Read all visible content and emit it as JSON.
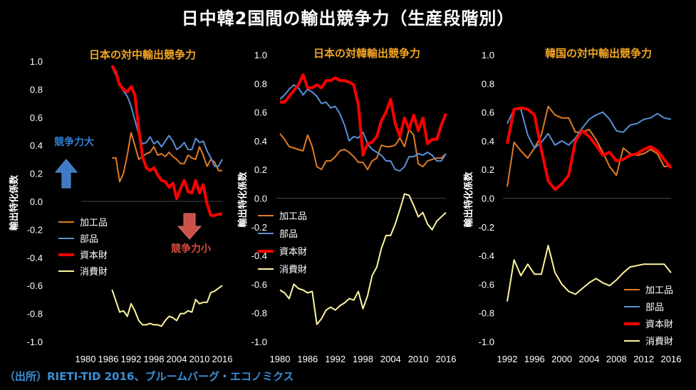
{
  "page": {
    "title": "日中韓2国間の輸出競争力（生産段階別）",
    "source": "（出所）RIETI-TID 2016、ブルームバーグ・エコノミクス"
  },
  "chart_data": [
    {
      "type": "line",
      "title": "日本の対中輸出競争力",
      "ylabel": "輸出特化係数",
      "ylim": [
        -1.0,
        1.0
      ],
      "yticks": [
        "1.0",
        "0.8",
        "0.6",
        "0.4",
        "0.2",
        "0.0",
        "-0.2",
        "-0.4",
        "-0.6",
        "-0.8",
        "-1.0"
      ],
      "xlim": [
        1980,
        2016
      ],
      "xticks": [
        "1980",
        "1986",
        "1992",
        "1998",
        "2004",
        "2010",
        "2016"
      ],
      "annotations": {
        "up": "競争力大",
        "down": "競争力小"
      },
      "legend_placement": "left-center",
      "series": [
        {
          "name": "加工品",
          "color": "#e07b25",
          "x": [
            1987,
            1988,
            1989,
            1990,
            1991,
            1992,
            1993,
            1994,
            1995,
            1996,
            1997,
            1998,
            1999,
            2000,
            2001,
            2002,
            2003,
            2004,
            2005,
            2006,
            2007,
            2008,
            2009,
            2010,
            2011,
            2012,
            2013,
            2014,
            2015,
            2016
          ],
          "y": [
            0.31,
            0.31,
            0.14,
            0.2,
            0.33,
            0.49,
            0.4,
            0.3,
            0.32,
            0.34,
            0.35,
            0.39,
            0.33,
            0.34,
            0.32,
            0.35,
            0.32,
            0.3,
            0.27,
            0.27,
            0.33,
            0.31,
            0.3,
            0.39,
            0.33,
            0.25,
            0.3,
            0.28,
            0.22,
            0.22
          ]
        },
        {
          "name": "部品",
          "color": "#5b8fd6",
          "x": [
            1987,
            1988,
            1989,
            1990,
            1991,
            1992,
            1993,
            1994,
            1995,
            1996,
            1997,
            1998,
            1999,
            2000,
            2001,
            2002,
            2003,
            2004,
            2005,
            2006,
            2007,
            2008,
            2009,
            2010,
            2011,
            2012,
            2013,
            2014,
            2015,
            2016
          ],
          "y": [
            0.96,
            0.9,
            0.83,
            0.79,
            0.75,
            0.68,
            0.58,
            0.48,
            0.41,
            0.42,
            0.46,
            0.41,
            0.43,
            0.39,
            0.43,
            0.47,
            0.43,
            0.37,
            0.39,
            0.42,
            0.37,
            0.37,
            0.45,
            0.42,
            0.43,
            0.36,
            0.31,
            0.25,
            0.25,
            0.3
          ]
        },
        {
          "name": "資本財",
          "color": "#ff0000",
          "x": [
            1987,
            1988,
            1989,
            1990,
            1991,
            1992,
            1993,
            1994,
            1995,
            1996,
            1997,
            1998,
            1999,
            2000,
            2001,
            2002,
            2003,
            2004,
            2005,
            2006,
            2007,
            2008,
            2009,
            2010,
            2011,
            2012,
            2013,
            2014,
            2015,
            2016
          ],
          "y": [
            0.97,
            0.92,
            0.83,
            0.8,
            0.78,
            0.82,
            0.76,
            0.52,
            0.32,
            0.24,
            0.22,
            0.24,
            0.19,
            0.15,
            0.14,
            0.1,
            0.13,
            0.02,
            0.09,
            0.15,
            0.07,
            0.06,
            0.15,
            0.06,
            0.12,
            -0.02,
            -0.1,
            -0.1,
            -0.09,
            -0.09
          ]
        },
        {
          "name": "消費財",
          "color": "#fff59d",
          "x": [
            1987,
            1988,
            1989,
            1990,
            1991,
            1992,
            1993,
            1994,
            1995,
            1996,
            1997,
            1998,
            1999,
            2000,
            2001,
            2002,
            2003,
            2004,
            2005,
            2006,
            2007,
            2008,
            2009,
            2010,
            2011,
            2012,
            2013,
            2014,
            2015,
            2016
          ],
          "y": [
            -0.63,
            -0.71,
            -0.79,
            -0.78,
            -0.82,
            -0.73,
            -0.78,
            -0.85,
            -0.88,
            -0.88,
            -0.87,
            -0.88,
            -0.88,
            -0.89,
            -0.85,
            -0.82,
            -0.83,
            -0.85,
            -0.8,
            -0.8,
            -0.78,
            -0.79,
            -0.7,
            -0.73,
            -0.72,
            -0.72,
            -0.65,
            -0.64,
            -0.62,
            -0.6
          ]
        }
      ]
    },
    {
      "type": "line",
      "title": "日本の対韓輸出競争力",
      "ylabel": "輸出特化係数",
      "ylim": [
        -1.0,
        1.0
      ],
      "yticks": [
        "1.0",
        "0.8",
        "0.6",
        "0.4",
        "0.2",
        "0.0",
        "-0.2",
        "-0.4",
        "-0.6",
        "-0.8",
        "-1.0"
      ],
      "xlim": [
        1980,
        2016
      ],
      "xticks": [
        "1980",
        "1986",
        "1992",
        "1998",
        "2004",
        "2010",
        "2016"
      ],
      "legend_placement": "left-center",
      "series": [
        {
          "name": "加工品",
          "color": "#e07b25",
          "x": [
            1980,
            1981,
            1982,
            1983,
            1984,
            1985,
            1986,
            1987,
            1988,
            1989,
            1990,
            1991,
            1992,
            1993,
            1994,
            1995,
            1996,
            1997,
            1998,
            1999,
            2000,
            2001,
            2002,
            2003,
            2004,
            2005,
            2006,
            2007,
            2008,
            2009,
            2010,
            2011,
            2012,
            2013,
            2014,
            2015,
            2016
          ],
          "y": [
            0.45,
            0.41,
            0.36,
            0.35,
            0.34,
            0.33,
            0.44,
            0.36,
            0.22,
            0.2,
            0.26,
            0.26,
            0.29,
            0.33,
            0.34,
            0.32,
            0.29,
            0.25,
            0.25,
            0.2,
            0.26,
            0.28,
            0.37,
            0.36,
            0.36,
            0.37,
            0.42,
            0.36,
            0.48,
            0.44,
            0.24,
            0.22,
            0.26,
            0.27,
            0.28,
            0.28,
            0.31
          ]
        },
        {
          "name": "部品",
          "color": "#5b8fd6",
          "x": [
            1980,
            1981,
            1982,
            1983,
            1984,
            1985,
            1986,
            1987,
            1988,
            1989,
            1990,
            1991,
            1992,
            1993,
            1994,
            1995,
            1996,
            1997,
            1998,
            1999,
            2000,
            2001,
            2002,
            2003,
            2004,
            2005,
            2006,
            2007,
            2008,
            2009,
            2010,
            2011,
            2012,
            2013,
            2014,
            2015,
            2016
          ],
          "y": [
            0.69,
            0.72,
            0.76,
            0.79,
            0.77,
            0.72,
            0.76,
            0.74,
            0.71,
            0.66,
            0.67,
            0.63,
            0.64,
            0.59,
            0.51,
            0.4,
            0.43,
            0.42,
            0.46,
            0.38,
            0.34,
            0.32,
            0.3,
            0.26,
            0.26,
            0.2,
            0.19,
            0.22,
            0.29,
            0.29,
            0.31,
            0.3,
            0.32,
            0.3,
            0.26,
            0.26,
            0.31
          ]
        },
        {
          "name": "資本財",
          "color": "#ff0000",
          "x": [
            1980,
            1981,
            1982,
            1983,
            1984,
            1985,
            1986,
            1987,
            1988,
            1989,
            1990,
            1991,
            1992,
            1993,
            1994,
            1995,
            1996,
            1997,
            1998,
            1999,
            2000,
            2001,
            2002,
            2003,
            2004,
            2005,
            2006,
            2007,
            2008,
            2009,
            2010,
            2011,
            2012,
            2013,
            2014,
            2015,
            2016
          ],
          "y": [
            0.67,
            0.67,
            0.71,
            0.75,
            0.79,
            0.86,
            0.77,
            0.77,
            0.79,
            0.77,
            0.82,
            0.82,
            0.84,
            0.82,
            0.82,
            0.81,
            0.79,
            0.65,
            0.3,
            0.38,
            0.39,
            0.43,
            0.54,
            0.6,
            0.69,
            0.52,
            0.43,
            0.56,
            0.48,
            0.58,
            0.47,
            0.56,
            0.38,
            0.41,
            0.41,
            0.51,
            0.59
          ]
        },
        {
          "name": "消費財",
          "color": "#fff59d",
          "x": [
            1980,
            1981,
            1982,
            1983,
            1984,
            1985,
            1986,
            1987,
            1988,
            1989,
            1990,
            1991,
            1992,
            1993,
            1994,
            1995,
            1996,
            1997,
            1998,
            1999,
            2000,
            2001,
            2002,
            2003,
            2004,
            2005,
            2006,
            2007,
            2008,
            2009,
            2010,
            2011,
            2012,
            2013,
            2014,
            2015,
            2016
          ],
          "y": [
            -0.64,
            -0.66,
            -0.7,
            -0.6,
            -0.63,
            -0.64,
            -0.66,
            -0.65,
            -0.88,
            -0.84,
            -0.78,
            -0.76,
            -0.78,
            -0.75,
            -0.73,
            -0.7,
            -0.71,
            -0.65,
            -0.77,
            -0.68,
            -0.54,
            -0.48,
            -0.35,
            -0.26,
            -0.26,
            -0.18,
            -0.08,
            0.03,
            0.02,
            -0.05,
            -0.13,
            -0.1,
            -0.18,
            -0.22,
            -0.16,
            -0.13,
            -0.1
          ]
        }
      ]
    },
    {
      "type": "line",
      "title": "韓国の対中輸出競争力",
      "ylabel": "輸出特化係数",
      "ylim": [
        -1.0,
        1.0
      ],
      "yticks": [
        "1.0",
        "0.8",
        "0.6",
        "0.4",
        "0.2",
        "0.0",
        "-0.2",
        "-0.4",
        "-0.6",
        "-0.8",
        "-1.0"
      ],
      "xlim": [
        1992,
        2016
      ],
      "xticks": [
        "1992",
        "1996",
        "2000",
        "2004",
        "2008",
        "2012",
        "2016"
      ],
      "legend_placement": "bottom-right",
      "series": [
        {
          "name": "加工品",
          "color": "#e07b25",
          "x": [
            1992,
            1993,
            1994,
            1995,
            1996,
            1997,
            1998,
            1999,
            2000,
            2001,
            2002,
            2003,
            2004,
            2005,
            2006,
            2007,
            2008,
            2009,
            2010,
            2011,
            2012,
            2013,
            2014,
            2015,
            2016
          ],
          "y": [
            0.08,
            0.39,
            0.33,
            0.28,
            0.35,
            0.44,
            0.64,
            0.58,
            0.56,
            0.56,
            0.46,
            0.46,
            0.48,
            0.41,
            0.32,
            0.22,
            0.16,
            0.35,
            0.31,
            0.3,
            0.31,
            0.34,
            0.31,
            0.22,
            0.23
          ]
        },
        {
          "name": "部品",
          "color": "#5b8fd6",
          "x": [
            1992,
            1993,
            1994,
            1995,
            1996,
            1997,
            1998,
            1999,
            2000,
            2001,
            2002,
            2003,
            2004,
            2005,
            2006,
            2007,
            2008,
            2009,
            2010,
            2011,
            2012,
            2013,
            2014,
            2015,
            2016
          ],
          "y": [
            0.52,
            0.62,
            0.62,
            0.44,
            0.35,
            0.39,
            0.45,
            0.37,
            0.4,
            0.37,
            0.42,
            0.49,
            0.55,
            0.58,
            0.6,
            0.55,
            0.47,
            0.46,
            0.51,
            0.52,
            0.55,
            0.56,
            0.59,
            0.56,
            0.55
          ]
        },
        {
          "name": "資本財",
          "color": "#ff0000",
          "x": [
            1992,
            1993,
            1994,
            1995,
            1996,
            1997,
            1998,
            1999,
            2000,
            2001,
            2002,
            2003,
            2004,
            2005,
            2006,
            2007,
            2008,
            2009,
            2010,
            2011,
            2012,
            2013,
            2014,
            2015,
            2016
          ],
          "y": [
            0.38,
            0.62,
            0.63,
            0.62,
            0.58,
            0.34,
            0.12,
            0.06,
            0.1,
            0.16,
            0.4,
            0.47,
            0.43,
            0.37,
            0.3,
            0.32,
            0.26,
            0.27,
            0.3,
            0.31,
            0.34,
            0.36,
            0.33,
            0.27,
            0.21
          ]
        },
        {
          "name": "消費財",
          "color": "#fff59d",
          "x": [
            1992,
            1993,
            1994,
            1995,
            1996,
            1997,
            1998,
            1999,
            2000,
            2001,
            2002,
            2003,
            2004,
            2005,
            2006,
            2007,
            2008,
            2009,
            2010,
            2011,
            2012,
            2013,
            2014,
            2015,
            2016
          ],
          "y": [
            -0.72,
            -0.43,
            -0.54,
            -0.46,
            -0.53,
            -0.53,
            -0.33,
            -0.52,
            -0.6,
            -0.65,
            -0.67,
            -0.63,
            -0.59,
            -0.56,
            -0.59,
            -0.61,
            -0.57,
            -0.52,
            -0.48,
            -0.47,
            -0.46,
            -0.46,
            -0.46,
            -0.46,
            -0.52
          ]
        }
      ]
    }
  ]
}
